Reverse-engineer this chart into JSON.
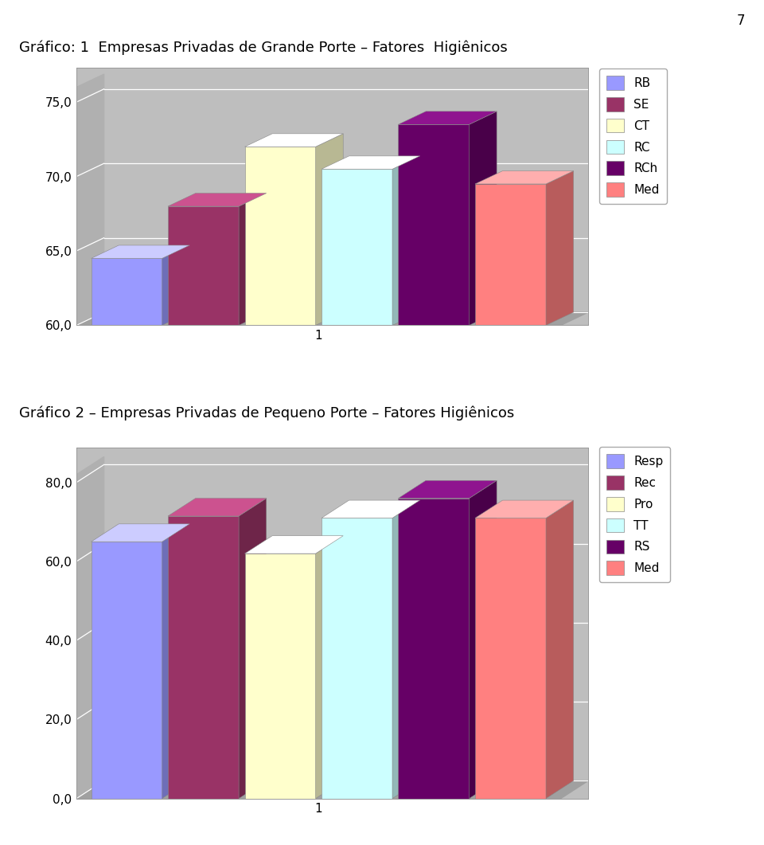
{
  "chart1": {
    "title": "Gráfico: 1  Empresas Privadas de Grande Porte – Fatores  Higiênicos",
    "series": [
      {
        "label": "RB",
        "value": 64.5,
        "color": "#9999FF"
      },
      {
        "label": "SE",
        "value": 68.0,
        "color": "#993366"
      },
      {
        "label": "CT",
        "value": 72.0,
        "color": "#FFFFCC"
      },
      {
        "label": "RC",
        "value": 70.5,
        "color": "#CCFFFF"
      },
      {
        "label": "RCh",
        "value": 73.5,
        "color": "#660066"
      },
      {
        "label": "Med",
        "value": 69.5,
        "color": "#FF8080"
      }
    ],
    "ylim": [
      60.0,
      76.0
    ],
    "yticks": [
      60.0,
      65.0,
      70.0,
      75.0
    ],
    "ytick_labels": [
      "60,0",
      "65,0",
      "70,0",
      "75,0"
    ],
    "xlabel": "1"
  },
  "chart2": {
    "title": "Gráfico 2 – Empresas Privadas de Pequeno Porte – Fatores Higiênicos",
    "series": [
      {
        "label": "Resp",
        "value": 65.0,
        "color": "#9999FF"
      },
      {
        "label": "Rec",
        "value": 71.5,
        "color": "#993366"
      },
      {
        "label": "Pro",
        "value": 62.0,
        "color": "#FFFFCC"
      },
      {
        "label": "TT",
        "value": 71.0,
        "color": "#CCFFFF"
      },
      {
        "label": "RS",
        "value": 76.0,
        "color": "#660066"
      },
      {
        "label": "Med",
        "value": 71.0,
        "color": "#FF8080"
      }
    ],
    "ylim": [
      0.0,
      82.0
    ],
    "yticks": [
      0.0,
      20.0,
      40.0,
      60.0,
      80.0
    ],
    "ytick_labels": [
      "0,0",
      "20,0",
      "40,0",
      "60,0",
      "80,0"
    ],
    "xlabel": "1"
  },
  "page_number": "7",
  "wall_color": "#BEBEBE",
  "floor_color": "#A0A0A0",
  "grid_color": "#D8D8D8",
  "title_fontsize": 13,
  "tick_fontsize": 11,
  "legend_fontsize": 11,
  "background_color": "#FFFFFF"
}
